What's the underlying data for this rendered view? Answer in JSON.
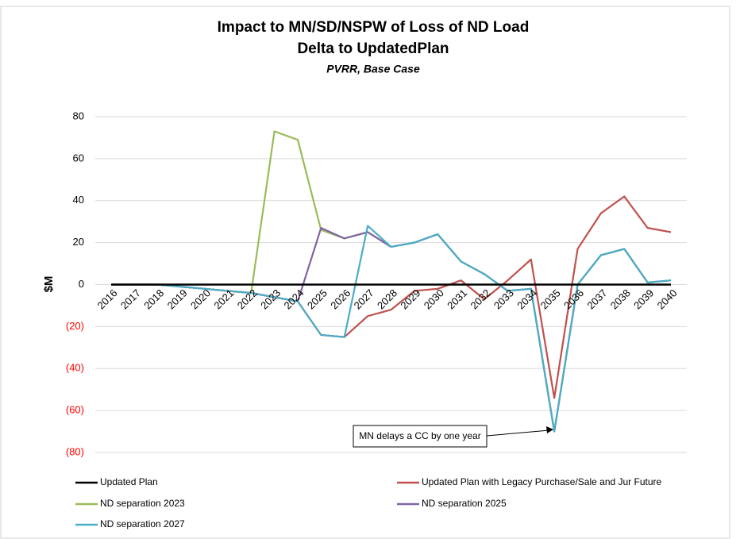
{
  "chart_data": {
    "type": "line",
    "title": "Impact to MN/SD/NSPW of Loss of ND Load",
    "subtitle": "Delta to UpdatedPlan",
    "subtitle2": "PVRR, Base Case",
    "y_label": "$M",
    "annotation": "MN delays a CC by one year",
    "categories": [
      "2016",
      "2017",
      "2018",
      "2019",
      "2020",
      "2021",
      "2022",
      "2023",
      "2024",
      "2025",
      "2026",
      "2027",
      "2028",
      "2029",
      "2030",
      "2031",
      "2032",
      "2033",
      "2034",
      "2035",
      "2036",
      "2037",
      "2038",
      "2039",
      "2040"
    ],
    "ylim": [
      -80,
      80
    ],
    "yticks": [
      {
        "value": -80,
        "label": "(80)"
      },
      {
        "value": -60,
        "label": "(60)"
      },
      {
        "value": -40,
        "label": "(40)"
      },
      {
        "value": -20,
        "label": "(20)"
      },
      0,
      20,
      40,
      60,
      80
    ],
    "grid": true,
    "negative_tick_color": "#ff0000",
    "series": [
      {
        "name": "Updated Plan",
        "color": "#000000",
        "values": [
          0,
          0,
          0,
          0,
          0,
          0,
          0,
          0,
          0,
          0,
          0,
          0,
          0,
          0,
          0,
          0,
          0,
          0,
          0,
          0,
          0,
          0,
          0,
          0,
          0
        ]
      },
      {
        "name": "Updated Plan with Legacy Purchase/Sale and Jur Future",
        "color": "#c0504d",
        "values": [
          0,
          0,
          0,
          -1,
          -2,
          -3,
          -4,
          -6,
          -8,
          -24,
          -25,
          -15,
          -12,
          -3,
          -2,
          2,
          -7,
          2,
          12,
          -54,
          17,
          34,
          42,
          27,
          25
        ]
      },
      {
        "name": "ND separation 2023",
        "color": "#9bbb59",
        "values": [
          0,
          0,
          0,
          -1,
          -2,
          -3,
          -4,
          73,
          69,
          26,
          22,
          25,
          18,
          20,
          24,
          11,
          5,
          -3,
          -2,
          -70,
          0,
          14,
          17,
          1,
          2
        ]
      },
      {
        "name": "ND separation 2025",
        "color": "#8064a2",
        "values": [
          0,
          0,
          0,
          -1,
          -2,
          -3,
          -4,
          -6,
          -8,
          27,
          22,
          25,
          18,
          20,
          24,
          11,
          5,
          -3,
          -2,
          -70,
          0,
          14,
          17,
          1,
          2
        ]
      },
      {
        "name": "ND separation 2027",
        "color": "#4bacc6",
        "values": [
          0,
          0,
          0,
          -1,
          -2,
          -3,
          -4,
          -6,
          -8,
          -24,
          -25,
          28,
          18,
          20,
          24,
          11,
          5,
          -3,
          -2,
          -70,
          0,
          14,
          17,
          1,
          2
        ]
      }
    ]
  }
}
